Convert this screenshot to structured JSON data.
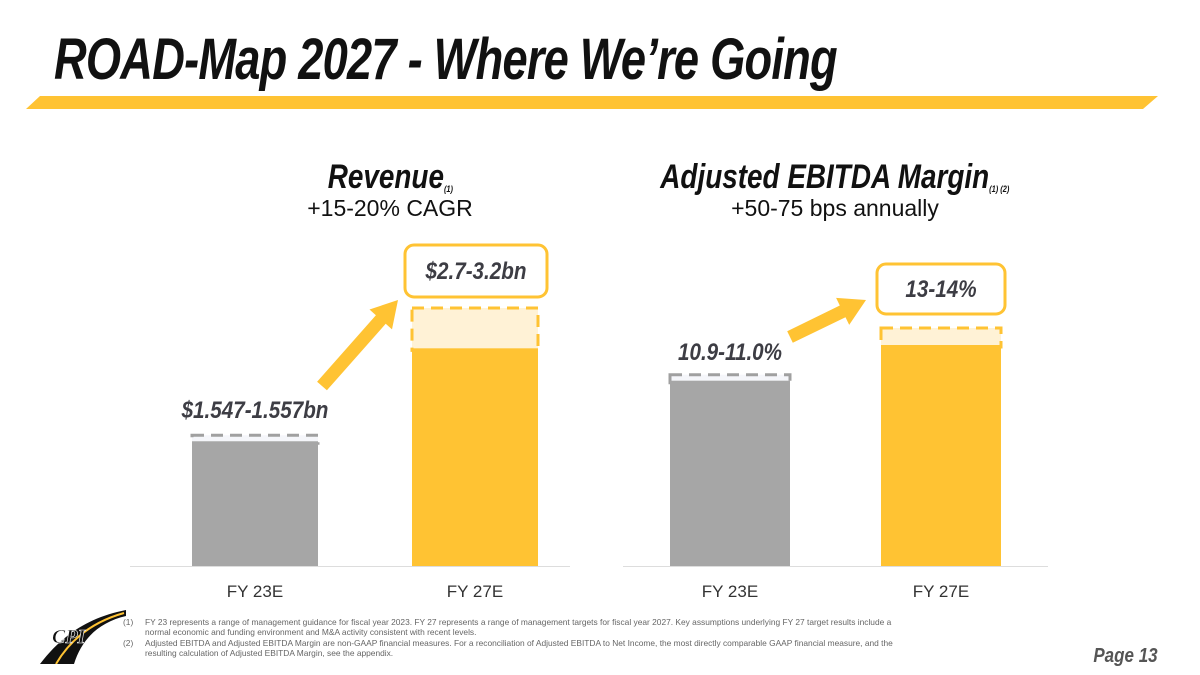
{
  "header": {
    "title": "ROAD-Map 2027 - Where We’re Going"
  },
  "colors": {
    "accent_yellow": "#FFC333",
    "light_yellow": "#FFF2D6",
    "bar_gray": "#A6A6A6",
    "light_gray": "#F5F6FA",
    "dash_gray": "#A0A0A0",
    "label_dark": "#3D3D44"
  },
  "chart_data": [
    {
      "type": "bar",
      "title": "Revenue",
      "title_footnote": "(1)",
      "subtitle": "+15-20% CAGR",
      "categories": [
        "FY 23E",
        "FY 27E"
      ],
      "unit": "$bn",
      "series": [
        {
          "name": "low",
          "values": [
            1.547,
            2.7
          ]
        },
        {
          "name": "high",
          "values": [
            1.557,
            3.2
          ]
        }
      ],
      "data_labels": [
        "$1.547-1.557bn",
        "$2.7-3.2bn"
      ],
      "ylim": [
        0,
        3.2
      ],
      "grid": false,
      "xlabel": "",
      "ylabel": ""
    },
    {
      "type": "bar",
      "title": "Adjusted EBITDA Margin",
      "title_footnote": "(1) (2)",
      "subtitle": "+50-75 bps annually",
      "categories": [
        "FY 23E",
        "FY 27E"
      ],
      "unit": "%",
      "series": [
        {
          "name": "low",
          "values": [
            10.9,
            13
          ]
        },
        {
          "name": "high",
          "values": [
            11.0,
            14
          ]
        }
      ],
      "data_labels": [
        "10.9-11.0%",
        "13-14%"
      ],
      "ylim": [
        0,
        14
      ],
      "grid": false,
      "xlabel": "",
      "ylabel": ""
    }
  ],
  "footnotes": [
    {
      "num": "(1)",
      "text": "FY 23 represents a range of management guidance for fiscal year 2023. FY 27 represents a range of management targets for fiscal year 2027. Key assumptions underlying FY 27 target results include a normal economic and funding environment and M&A activity consistent with recent levels."
    },
    {
      "num": "(2)",
      "text": "Adjusted EBITDA and Adjusted EBITDA Margin are non-GAAP financial measures. For a reconciliation of Adjusted EBITDA to Net Income, the most directly comparable GAAP financial measure, and the resulting calculation of Adjusted EBITDA Margin, see the appendix."
    }
  ],
  "logo": {
    "text": "CPI"
  },
  "page": {
    "label": "Page 13"
  }
}
